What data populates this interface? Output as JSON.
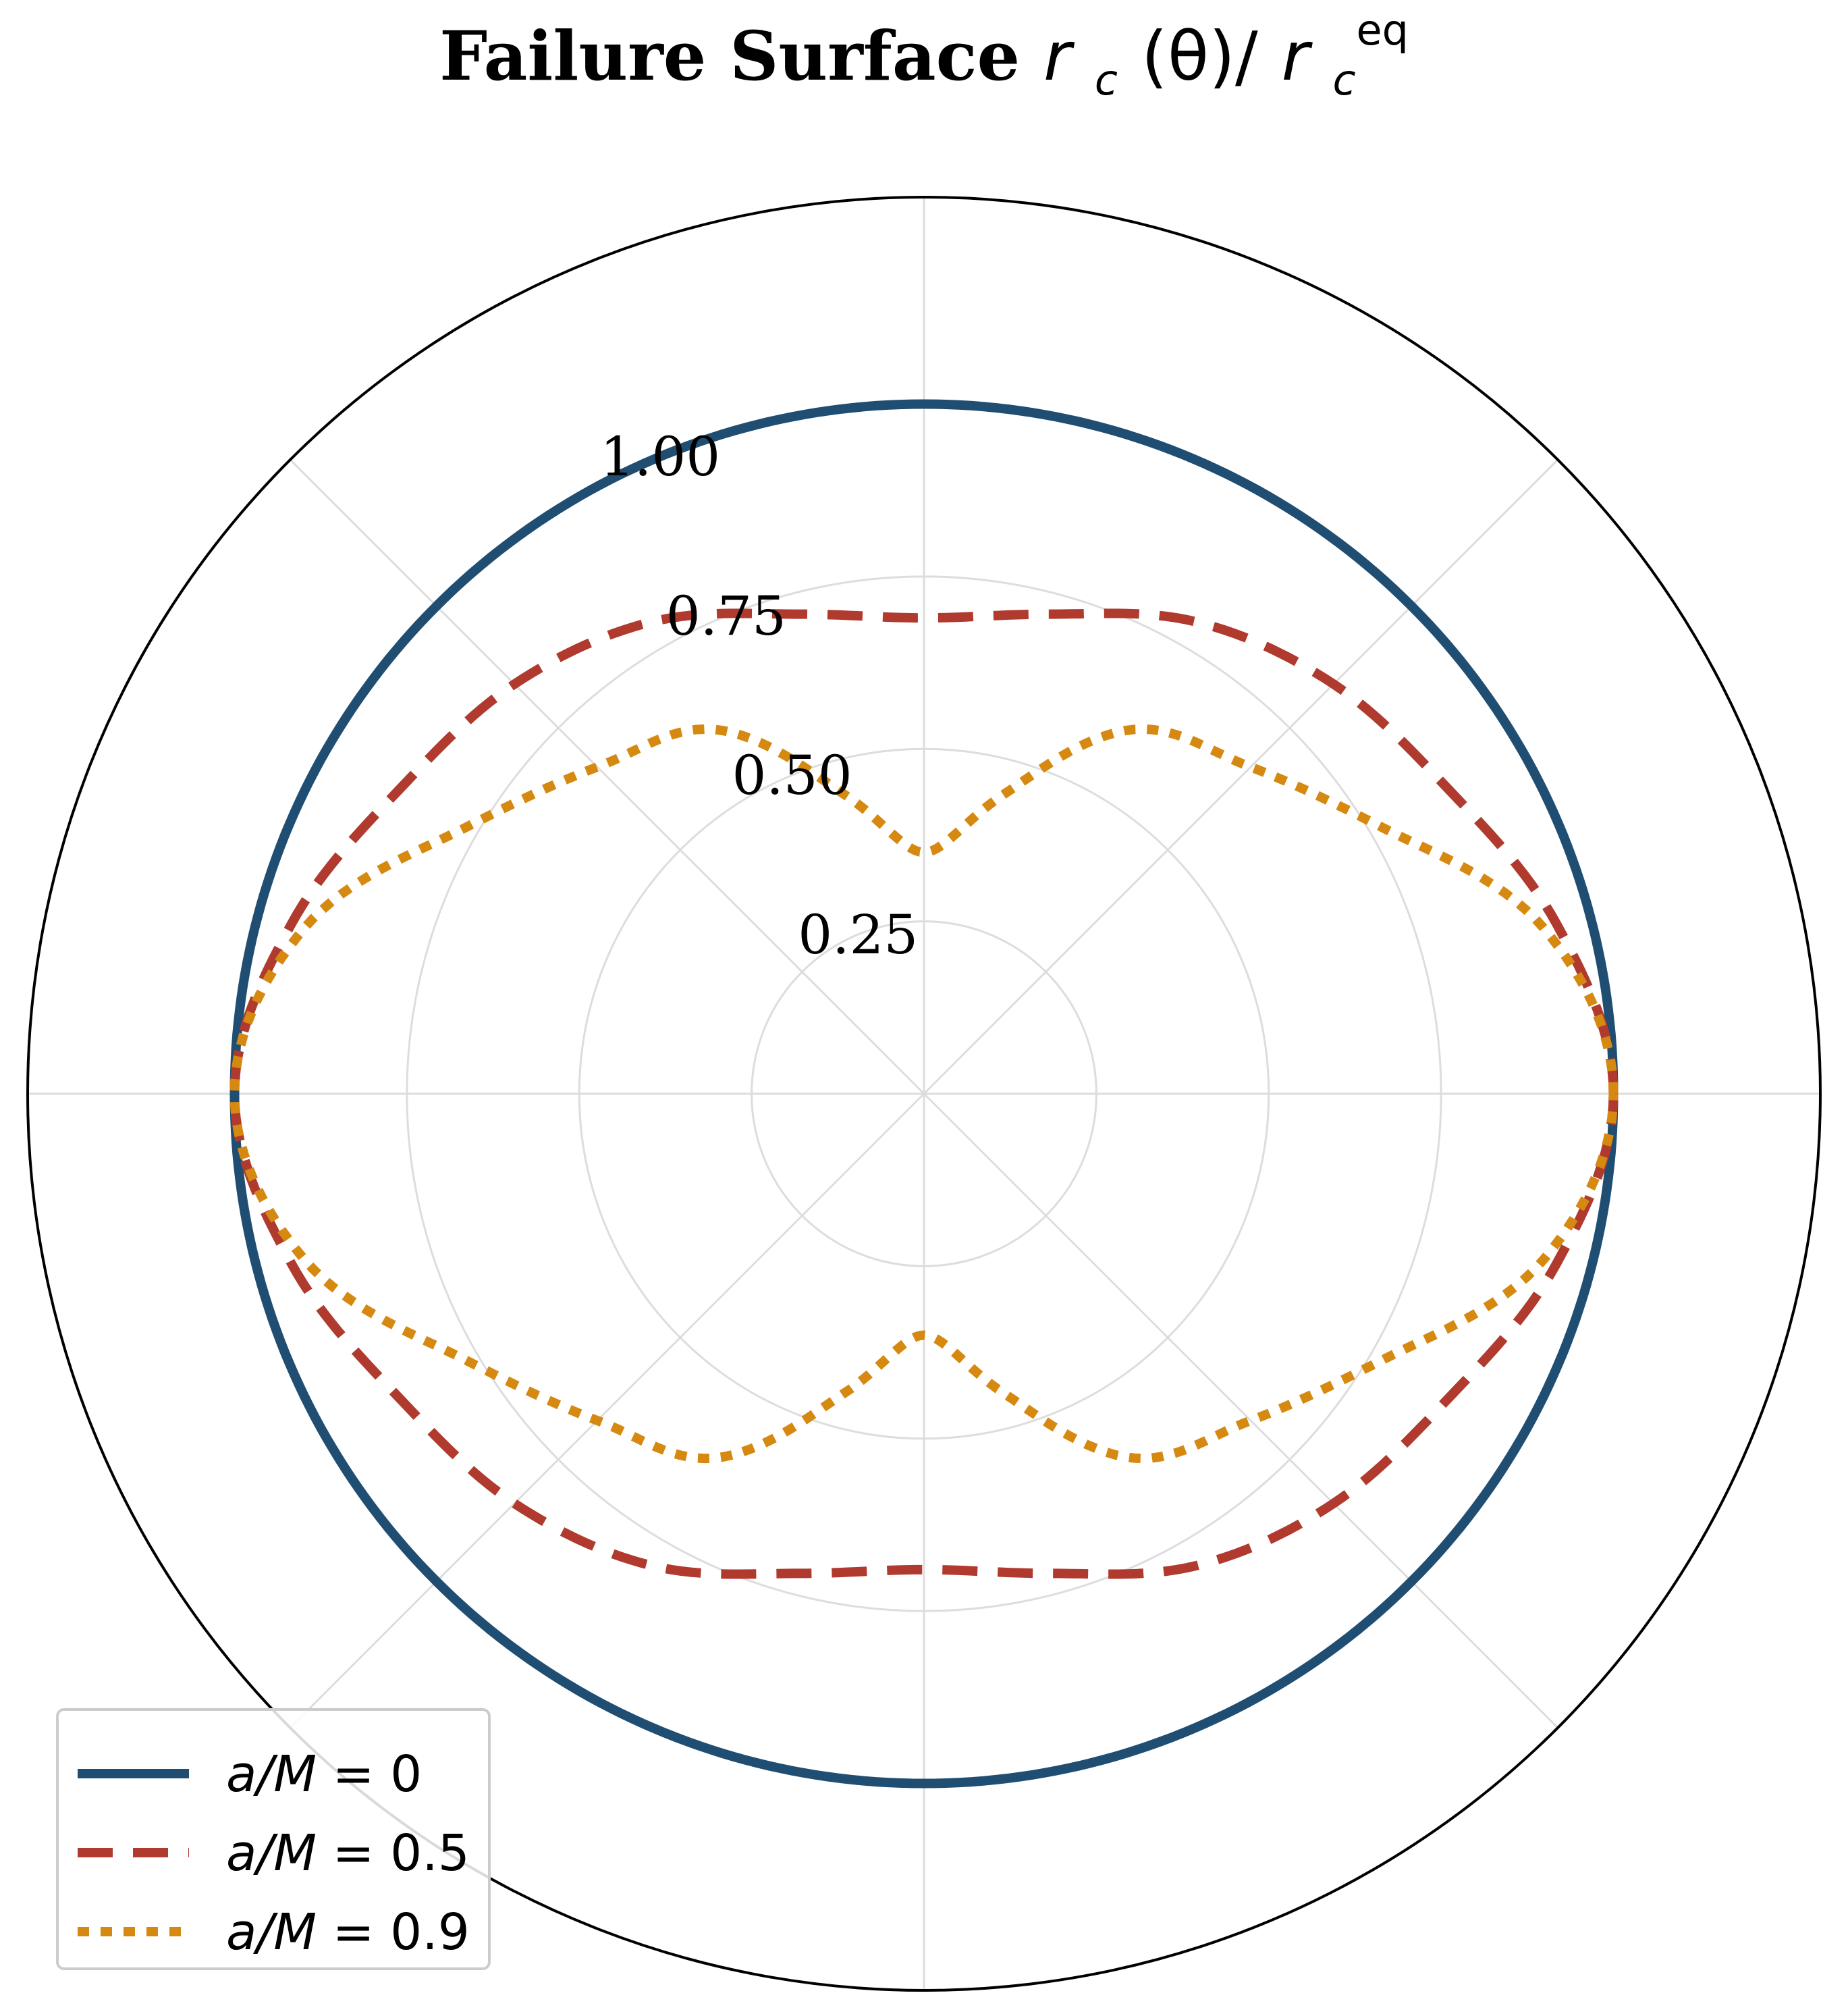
{
  "chart_data": {
    "type": "polar_line",
    "title": {
      "bold": "Failure Surface",
      "math_main": "r",
      "math_sub": "c",
      "math_theta": "(θ)/",
      "math_main2": "r",
      "math_sub2": "c",
      "math_sup2": "eq"
    },
    "r_range": [
      0,
      1.3
    ],
    "r_ticks": [
      0.25,
      0.5,
      0.75,
      1.0
    ],
    "r_tick_labels": [
      "0.25",
      "0.50",
      "0.75",
      "1.00"
    ],
    "theta_grid_deg": [
      0,
      45,
      90,
      135,
      180,
      225,
      270,
      315
    ],
    "grid": true,
    "legend_position": "lower-left",
    "series": [
      {
        "name_math": "a/M",
        "name_value": " = 0",
        "color": "#1f4e72",
        "style": "solid",
        "theta_deg": [
          0,
          15,
          30,
          45,
          60,
          75,
          90
        ],
        "r": [
          1.0,
          1.0,
          1.0,
          1.0,
          1.0,
          1.0,
          1.0
        ]
      },
      {
        "name_math": "a/M",
        "name_value": " = 0.5",
        "color": "#b03a2e",
        "style": "dashed",
        "theta_deg": [
          0,
          15,
          30,
          45,
          60,
          75,
          90
        ],
        "r": [
          1.0,
          0.95,
          0.88,
          0.84,
          0.79,
          0.72,
          0.69
        ]
      },
      {
        "name_math": "a/M",
        "name_value": " = 0.9",
        "color": "#d68910",
        "style": "dotted",
        "theta_deg": [
          0,
          15,
          30,
          45,
          60,
          75,
          90
        ],
        "r": [
          1.0,
          0.93,
          0.77,
          0.67,
          0.61,
          0.45,
          0.35
        ]
      }
    ]
  }
}
